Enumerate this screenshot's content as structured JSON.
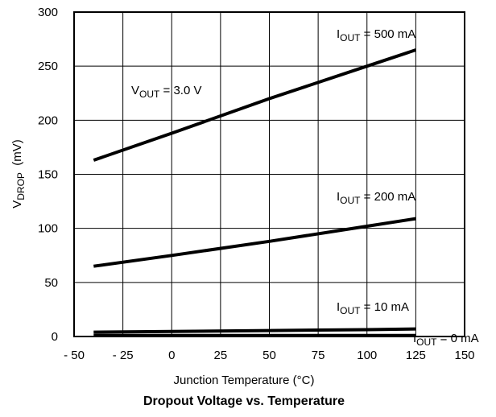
{
  "chart_data": {
    "type": "line",
    "title": "Dropout Voltage vs. Temperature",
    "xlabel": "Junction Temperature (°C)",
    "ylabel": {
      "base": "V",
      "sub": "DROP",
      "rest": "  (mV)"
    },
    "xlim": [
      -50,
      150
    ],
    "ylim": [
      0,
      300
    ],
    "xticks": [
      -50,
      -25,
      0,
      25,
      50,
      75,
      100,
      125,
      150
    ],
    "xtick_labels": [
      "- 50",
      "- 25",
      "0",
      "25",
      "50",
      "75",
      "100",
      "125",
      "150"
    ],
    "yticks": [
      0,
      50,
      100,
      150,
      200,
      250,
      300
    ],
    "ytick_labels": [
      "0",
      "50",
      "100",
      "150",
      "200",
      "250",
      "300"
    ],
    "grid": true,
    "series": [
      {
        "name": "I_OUT = 500 mA",
        "x": [
          -40,
          0,
          50,
          100,
          125
        ],
        "y": [
          163,
          188,
          220,
          250,
          265
        ]
      },
      {
        "name": "I_OUT = 200 mA",
        "x": [
          -40,
          0,
          50,
          100,
          125
        ],
        "y": [
          65,
          75,
          88,
          102,
          109
        ]
      },
      {
        "name": "I_OUT = 10 mA",
        "x": [
          -40,
          0,
          50,
          100,
          125
        ],
        "y": [
          4,
          4.7,
          5.5,
          6.3,
          7
        ]
      },
      {
        "name": "I_OUT = 0 mA",
        "x": [
          -40,
          125
        ],
        "y": [
          1,
          1
        ]
      }
    ],
    "annotations": [
      {
        "name": "vout",
        "parts": [
          {
            "t": "V"
          },
          {
            "t": "OUT",
            "sub": true
          },
          {
            "t": " = 3.0 V"
          }
        ]
      },
      {
        "name": "iout-500",
        "parts": [
          {
            "t": "I"
          },
          {
            "t": "OUT",
            "sub": true
          },
          {
            "t": " = 500 mA"
          }
        ]
      },
      {
        "name": "iout-200",
        "parts": [
          {
            "t": "I"
          },
          {
            "t": "OUT",
            "sub": true
          },
          {
            "t": " = 200 mA"
          }
        ]
      },
      {
        "name": "iout-10",
        "parts": [
          {
            "t": "I"
          },
          {
            "t": "OUT",
            "sub": true
          },
          {
            "t": " = 10 mA"
          }
        ]
      },
      {
        "name": "iout-0",
        "parts": [
          {
            "t": "I"
          },
          {
            "t": "OUT",
            "sub": true
          },
          {
            "t": " = 0 mA"
          }
        ]
      }
    ]
  }
}
